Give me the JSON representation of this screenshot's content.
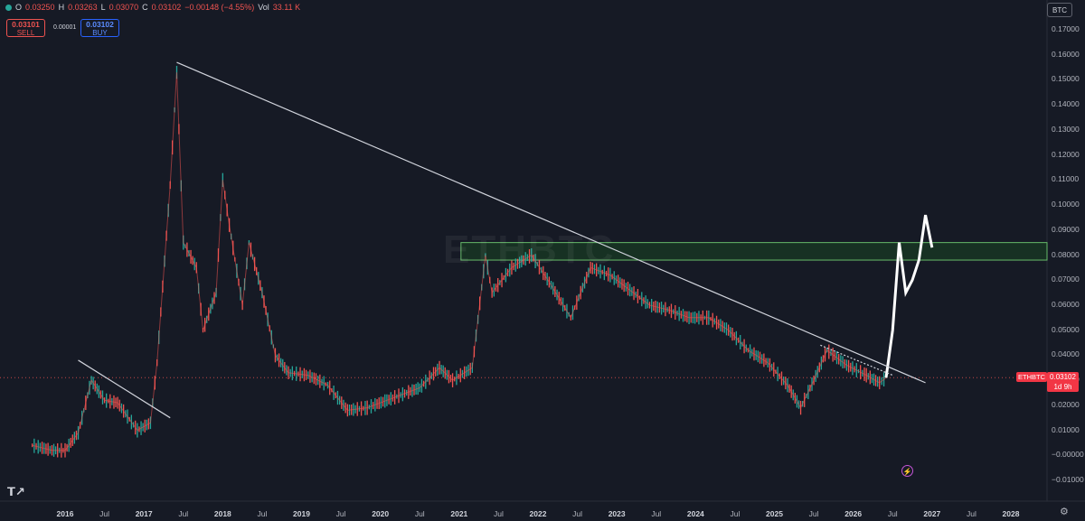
{
  "header": {
    "o_label": "O",
    "o_value": "0.03250",
    "h_label": "H",
    "h_value": "0.03263",
    "l_label": "L",
    "l_value": "0.03070",
    "c_label": "C",
    "c_value": "0.03102",
    "change": "−0.00148 (−4.55%)",
    "vol_label": "Vol",
    "vol_value": "33.11 K"
  },
  "trade": {
    "sell_price": "0.03101",
    "sell_label": "SELL",
    "spread": "0.00001",
    "buy_price": "0.03102",
    "buy_label": "BUY"
  },
  "currency": "BTC",
  "watermark": "ETHBTC",
  "symbol_tag": "ETHBTC",
  "price_tag": {
    "price": "0.03102",
    "countdown": "1d 9h"
  },
  "y_axis": [
    "0.17000",
    "0.16000",
    "0.15000",
    "0.14000",
    "0.13000",
    "0.12000",
    "0.11000",
    "0.10000",
    "0.09000",
    "0.08000",
    "0.07000",
    "0.06000",
    "0.05000",
    "0.04000",
    "0.03000",
    "0.02000",
    "0.01000",
    "−0.00000",
    "−0.01000"
  ],
  "x_axis": [
    {
      "label": "2016",
      "year": true
    },
    {
      "label": "Jul",
      "year": false
    },
    {
      "label": "2017",
      "year": true
    },
    {
      "label": "Jul",
      "year": false
    },
    {
      "label": "2018",
      "year": true
    },
    {
      "label": "Jul",
      "year": false
    },
    {
      "label": "2019",
      "year": true
    },
    {
      "label": "Jul",
      "year": false
    },
    {
      "label": "2020",
      "year": true
    },
    {
      "label": "Jul",
      "year": false
    },
    {
      "label": "2021",
      "year": true
    },
    {
      "label": "Jul",
      "year": false
    },
    {
      "label": "2022",
      "year": true
    },
    {
      "label": "Jul",
      "year": false
    },
    {
      "label": "2023",
      "year": true
    },
    {
      "label": "Jul",
      "year": false
    },
    {
      "label": "2024",
      "year": true
    },
    {
      "label": "Jul",
      "year": false
    },
    {
      "label": "2025",
      "year": true
    },
    {
      "label": "Jul",
      "year": false
    },
    {
      "label": "2026",
      "year": true
    },
    {
      "label": "Jul",
      "year": false
    },
    {
      "label": "2027",
      "year": true
    },
    {
      "label": "Jul",
      "year": false
    },
    {
      "label": "2028",
      "year": true
    }
  ],
  "colors": {
    "background": "#161a25",
    "up": "#26a69a",
    "down": "#ef5350",
    "projection": "#ffffff",
    "zone": "#2e7d32",
    "trendline": "#d1d4dc"
  },
  "icons": [
    "tradingview-logo-icon",
    "settings-gear-icon",
    "lightning-icon"
  ],
  "chart_data": {
    "type": "line",
    "symbol": "ETHBTC",
    "ylim": [
      -0.012,
      0.172
    ],
    "xlim": [
      "2015-07",
      "2028-06"
    ],
    "last_close": 0.03102,
    "series": [
      {
        "color": "#ef5350",
        "x": [
          "2015-08",
          "2015-11",
          "2016-01",
          "2016-03",
          "2016-05",
          "2016-07",
          "2016-09",
          "2016-12",
          "2017-02",
          "2017-03",
          "2017-05",
          "2017-06",
          "2017-07",
          "2017-09",
          "2017-10",
          "2017-12",
          "2018-01",
          "2018-02",
          "2018-04",
          "2018-05",
          "2018-07",
          "2018-09",
          "2018-11",
          "2019-02",
          "2019-05",
          "2019-08",
          "2019-11",
          "2020-02",
          "2020-05",
          "2020-07",
          "2020-10",
          "2020-12",
          "2021-03",
          "2021-05",
          "2021-06",
          "2021-09",
          "2021-12",
          "2022-03",
          "2022-06",
          "2022-09",
          "2022-12",
          "2023-03",
          "2023-06",
          "2023-09",
          "2023-12",
          "2024-03",
          "2024-06",
          "2024-09",
          "2024-12",
          "2025-03",
          "2025-05",
          "2025-07",
          "2025-09",
          "2025-12",
          "2026-03",
          "2026-05",
          "2026-06"
        ],
        "y": [
          0.004,
          0.002,
          0.002,
          0.009,
          0.03,
          0.022,
          0.021,
          0.01,
          0.013,
          0.037,
          0.108,
          0.153,
          0.085,
          0.075,
          0.05,
          0.065,
          0.11,
          0.092,
          0.06,
          0.085,
          0.065,
          0.04,
          0.033,
          0.032,
          0.028,
          0.018,
          0.019,
          0.022,
          0.025,
          0.027,
          0.035,
          0.03,
          0.035,
          0.08,
          0.065,
          0.075,
          0.08,
          0.068,
          0.055,
          0.075,
          0.072,
          0.066,
          0.06,
          0.058,
          0.055,
          0.055,
          0.05,
          0.042,
          0.037,
          0.028,
          0.019,
          0.03,
          0.042,
          0.036,
          0.032,
          0.029,
          0.031
        ]
      },
      {
        "color": "#ffffff",
        "x": [
          "2026-06",
          "2026-07",
          "2026-08",
          "2026-09",
          "2026-10",
          "2026-11",
          "2026-12",
          "2027-01"
        ],
        "y": [
          0.031,
          0.05,
          0.085,
          0.065,
          0.07,
          0.078,
          0.096,
          0.083
        ]
      }
    ],
    "trendlines": [
      {
        "from": [
          "2016-03",
          0.038
        ],
        "to": [
          "2017-05",
          0.015
        ]
      },
      {
        "from": [
          "2017-06",
          0.157
        ],
        "to": [
          "2026-12",
          0.029
        ]
      },
      {
        "from": [
          "2025-08",
          0.044
        ],
        "to": [
          "2026-07",
          0.032
        ],
        "dotted": true
      }
    ],
    "zone": {
      "y_low": 0.078,
      "y_high": 0.085,
      "x_start": "2021-01"
    }
  }
}
